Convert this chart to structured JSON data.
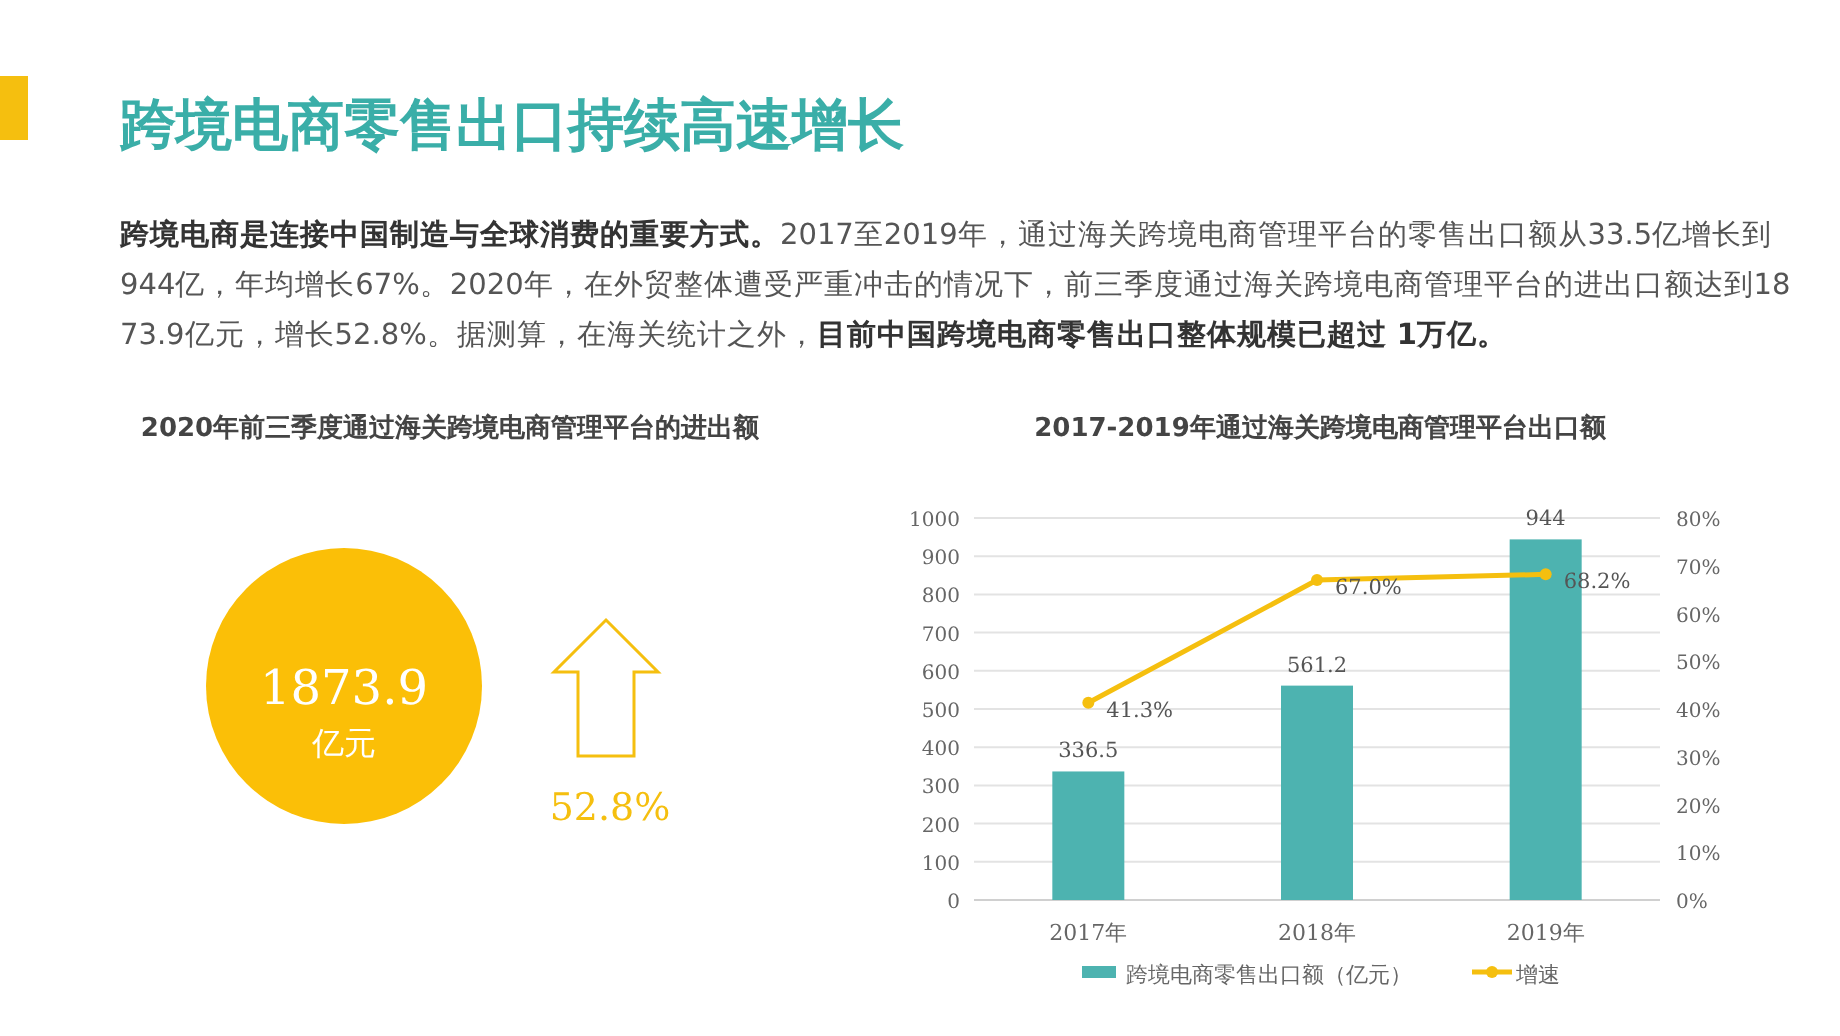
{
  "chart_data": [
    {
      "type": "other",
      "title": "跨境电商零售出口持续高速增长",
      "subtitle": "**跨境电商是连接中国制造与全球消费的重要方式。**2017至2019年，通过海关跨境电商管理平台的零售出口额从33.5亿增长到944亿，年均增长67%。2020年，在外贸整体遭受严重冲击的情况下，前三季度通过海关跨境电商管理平台的进出口额达到1873.9亿元，增长52.8%。据测算，在海关统计之外，**目前中国跨境电商零售出口整体规模已超过 1万亿。**"
    },
    {
      "type": "other",
      "title": "2020年前三季度通过海关跨境电商管理平台的进出额",
      "annotations": [
        "1873.9",
        "亿元",
        "52.8%"
      ]
    },
    {
      "type": "bar",
      "title": "2017-2019年通过海关跨境电商管理平台出口额",
      "categories": [
        "2017年",
        "2018年",
        "2019年"
      ],
      "series": [
        {
          "name": "跨境电商零售出口额（亿元）",
          "color": "#4db3b0",
          "values": [
            336.5,
            561.2,
            944
          ],
          "value_labels": [
            "336.5",
            "561.2",
            "944"
          ]
        },
        {
          "name": "增速",
          "type": "line",
          "axis": "y2",
          "color": "#f5bf0f",
          "values": [
            41.3,
            67.0,
            68.2
          ],
          "value_labels": [
            "41.3%",
            "67.0%",
            "68.2%"
          ]
        }
      ],
      "ylim": [
        0,
        1000
      ],
      "yticks": [
        0,
        100,
        200,
        300,
        400,
        500,
        600,
        700,
        800,
        900,
        1000
      ],
      "y2lim": [
        0,
        80
      ],
      "y2ticks": [
        {
          "value": 0,
          "label": "0%"
        },
        {
          "value": 10,
          "label": "10%"
        },
        {
          "value": 20,
          "label": "20%"
        },
        {
          "value": 30,
          "label": "30%"
        },
        {
          "value": 40,
          "label": "40%"
        },
        {
          "value": 50,
          "label": "50%"
        },
        {
          "value": 60,
          "label": "60%"
        },
        {
          "value": 70,
          "label": "70%"
        },
        {
          "value": 80,
          "label": "80%"
        }
      ],
      "grid": "y",
      "legend": "bottom",
      "marker": "circle",
      "line_style": "solid"
    }
  ]
}
